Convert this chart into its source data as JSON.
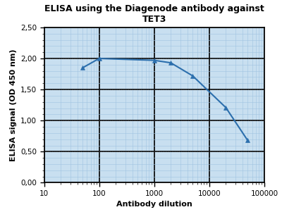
{
  "title_line1": "ELISA using the Diagenode antibody against",
  "title_line2": "TET3",
  "xlabel": "Antibody dilution",
  "ylabel": "ELISA signal (OD 450 nm)",
  "x": [
    50,
    100,
    1000,
    2000,
    5000,
    20000,
    50000
  ],
  "y": [
    1.85,
    2.0,
    1.97,
    1.93,
    1.72,
    1.21,
    0.68
  ],
  "line_color": "#2c6fad",
  "marker": "^",
  "marker_color": "#2c6fad",
  "marker_size": 5,
  "xlim_log": [
    10,
    100000
  ],
  "ylim": [
    0.0,
    2.5
  ],
  "yticks": [
    0.0,
    0.5,
    1.0,
    1.5,
    2.0,
    2.5
  ],
  "ytick_labels": [
    "0,00",
    "0,50",
    "1,00",
    "1,50",
    "2,00",
    "2,50"
  ],
  "xticks": [
    10,
    100,
    1000,
    10000,
    100000
  ],
  "xtick_labels": [
    "10",
    "100",
    "1000",
    "10000",
    "100000"
  ],
  "bg_color": "#c8dff0",
  "grid_major_color": "#000000",
  "grid_minor_color": "#a0c4e0",
  "dotted_y_color": "#555555",
  "title_fontsize": 9,
  "axis_label_fontsize": 8,
  "tick_fontsize": 7.5,
  "figsize": [
    4.0,
    3.01
  ],
  "dpi": 100
}
